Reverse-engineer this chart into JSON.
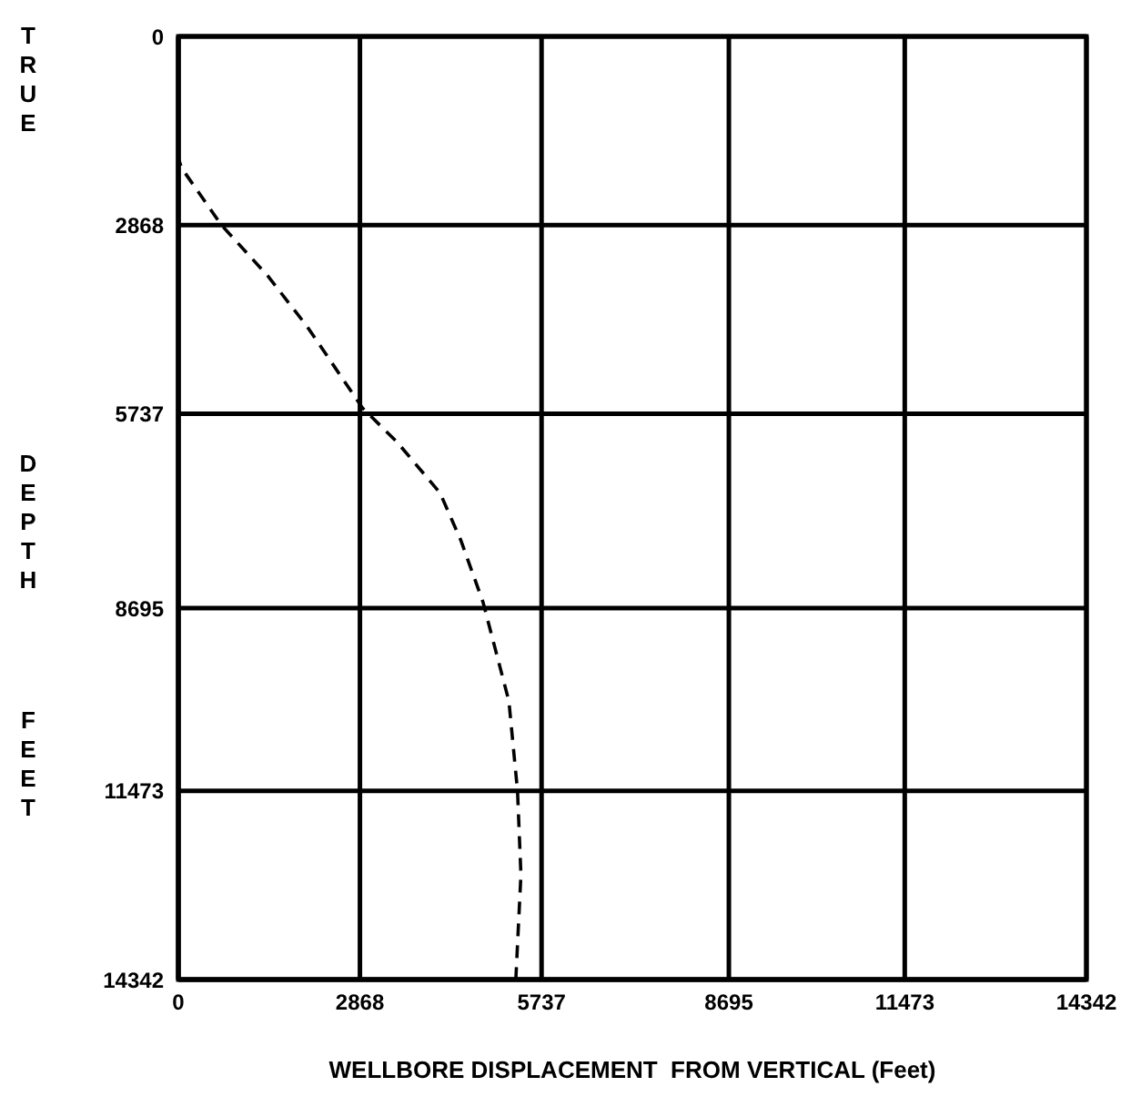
{
  "chart_data": {
    "type": "line",
    "xlabel": "WELLBORE DISPLACEMENT  FROM VERTICAL (Feet)",
    "ylabel": "TRUE DEPTH FEET",
    "series": [
      {
        "color": "#000000",
        "x": [
          0,
          0,
          54,
          680,
          1414,
          2039,
          2909,
          3453,
          4133,
          4460,
          4813,
          5221,
          5357,
          5411,
          5330
        ],
        "values": [
          1447,
          1853,
          2005,
          2868,
          3643,
          4418,
          5651,
          6167,
          6941,
          7658,
          8605,
          10109,
          11473,
          12748,
          14342
        ]
      }
    ],
    "xlim": [
      0,
      14342
    ],
    "ylim": [
      14342,
      0
    ],
    "xticks": [
      0,
      2868,
      5737,
      8695,
      11473,
      14342
    ],
    "yticks": [
      0,
      2868,
      5737,
      8695,
      11473,
      14342
    ],
    "grid": true,
    "line_style": "dashed"
  }
}
